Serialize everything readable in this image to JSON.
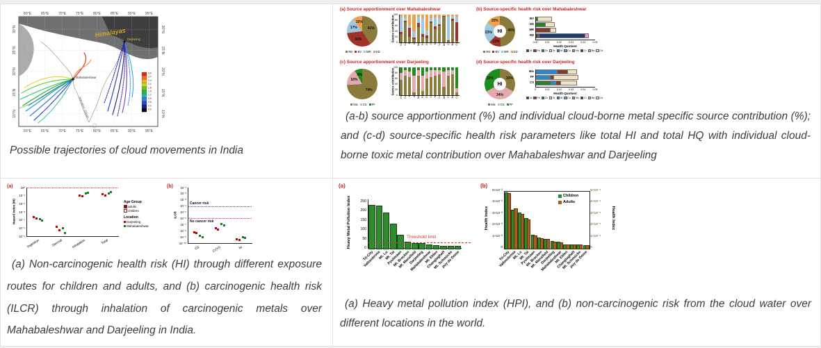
{
  "captions": {
    "map": "Possible trajectories of cloud movements in India",
    "top_right": "(a-b) source apportionment (%) and individual cloud-borne metal specific source contribution (%); and (c-d) source-specific health risk parameters like total HI and total HQ with individual cloud-borne toxic metal contribution over Mahabaleshwar and Darjeeling",
    "bottom_left": "(a) Non-carcinogenic health risk (HI) through different exposure routes for children and adults, and (b) carcinogenic health risk (ILCR) through inhalation of carcinogenic metals over Mahabaleshwar and Darjeeling in India.",
    "bottom_right": "(a) Heavy metal pollution index (HPI), and (b) non-carcinogenic risk from the cloud water over different locations in the world."
  },
  "metal_colors": {
    "Al": "#3b3b3b",
    "Fe": "#843c28",
    "Zn": "#2f7d32",
    "Sr": "#f2e2c0",
    "Ni": "#2e86c8",
    "Cu": "#6aa4d8",
    "Mn": "#d98032",
    "Cr": "#1c3a6e",
    "Ba": "#e89cc0",
    "Cd": "#ececec"
  },
  "chart_data": [
    {
      "id": "trajectory-map",
      "type": "map",
      "lon_ticks": [
        "60°E",
        "65°E",
        "70°E",
        "75°E",
        "80°E",
        "85°E",
        "90°E",
        "95°E"
      ],
      "lat_ticks": [
        "30°N",
        "25°N",
        "20°N",
        "15°N",
        "10°N"
      ],
      "labels": {
        "himalayas": "Himalayas",
        "darjeeling": "Darjeeling",
        "mahabaleshwar": "Mahabaleshwar",
        "western_ghats": "Western Ghats"
      },
      "colorbar_ticks": [
        "3.0",
        "2.7",
        "2.4",
        "2.1",
        "1.8",
        "1.5",
        "1.2",
        "0.9",
        "0.6",
        "0.3",
        "0.0"
      ],
      "colorbar_colors": [
        "#d92b1f",
        "#f2701d",
        "#f2b01d",
        "#c8d41f",
        "#6cc41f",
        "#2bb33e",
        "#24b7a0",
        "#2a86d4",
        "#2a46c9",
        "#1d1b8c",
        "#0a0a0a"
      ]
    },
    {
      "id": "pie-source-mahabaleshwar",
      "type": "pie",
      "title": "(a)  Source apportionment over Mahabaleshwar",
      "labels": [
        "RD",
        "BV",
        "MR",
        "DD"
      ],
      "values": [
        41,
        32,
        17,
        10
      ],
      "colors": [
        "#8a7a3b",
        "#a03028",
        "#9ec7e0",
        "#f0a04b"
      ]
    },
    {
      "id": "bars-source-mahabaleshwar",
      "type": "stacked-bar",
      "ylabel": "Source contribution",
      "ylim": [
        0,
        100
      ],
      "yticks": [
        0,
        20,
        40,
        60,
        80,
        100
      ],
      "categories": [
        "Na",
        "Ca",
        "K",
        "Al",
        "Mg",
        "Fe",
        "Zn",
        "Sr",
        "Ni",
        "Cu",
        "Mn",
        "Cr",
        "Ba",
        "Cd"
      ],
      "series": [
        {
          "name": "RD",
          "color": "#8a7a3b",
          "values": [
            30,
            72,
            20,
            12,
            55,
            20,
            15,
            70,
            48,
            60,
            92,
            5,
            78,
            5
          ]
        },
        {
          "name": "BV",
          "color": "#a03028",
          "values": [
            8,
            6,
            32,
            6,
            14,
            10,
            10,
            6,
            10,
            6,
            2,
            2,
            6,
            68
          ]
        },
        {
          "name": "MR",
          "color": "#9ec7e0",
          "values": [
            55,
            12,
            8,
            22,
            24,
            58,
            18,
            12,
            32,
            22,
            4,
            85,
            10,
            20
          ]
        },
        {
          "name": "DD",
          "color": "#f0a04b",
          "values": [
            7,
            10,
            40,
            60,
            7,
            12,
            57,
            12,
            10,
            12,
            2,
            8,
            6,
            7
          ]
        }
      ]
    },
    {
      "id": "donut-health-mahabaleshwar",
      "type": "donut",
      "title": "(b)  Source-specific health risk over Mahabaleshwar",
      "center_label": "HI",
      "labels": [
        "RD",
        "BV",
        "MR",
        "DD"
      ],
      "values": [
        49,
        13,
        23,
        15
      ],
      "colors": [
        "#8a7a3b",
        "#a03028",
        "#9ec7e0",
        "#f0a04b"
      ]
    },
    {
      "id": "hq-bars-mahabaleshwar",
      "type": "h-stacked-bar",
      "xlabel": "Health Quotient",
      "xlim": [
        0,
        0.05
      ],
      "xticks": [
        "0.00",
        "0.01",
        "0.02",
        "0.03",
        "0.04",
        "0.05"
      ],
      "rows": [
        {
          "label": "BV",
          "segments": [
            [
              "Zn",
              0.0015
            ],
            [
              "Sr",
              0.0115
            ]
          ]
        },
        {
          "label": "DD",
          "segments": [
            [
              "Zn",
              0.008
            ],
            [
              "Sr",
              0.007
            ]
          ]
        },
        {
          "label": "MR",
          "segments": [
            [
              "Fe",
              0.012
            ],
            [
              "Sr",
              0.0045
            ]
          ]
        },
        {
          "label": "RD",
          "segments": [
            [
              "Al",
              0.0015
            ],
            [
              "Fe",
              0.0015
            ],
            [
              "Cr",
              0.038
            ],
            [
              "Ba",
              0.0025
            ]
          ]
        }
      ],
      "metal_legend": [
        "Al",
        "Fe",
        "Zn",
        "Sr",
        "Ni",
        "Cu",
        "Mn",
        "Cr",
        "Ba",
        "Cd"
      ]
    },
    {
      "id": "pie-source-darjeeling",
      "type": "pie",
      "title": "(c)  Source apportionment over Darjeeling",
      "labels": [
        "Mix",
        "CS",
        "FF"
      ],
      "values": [
        74,
        18,
        8
      ],
      "colors": [
        "#8a7a3b",
        "#e5a9ad",
        "#1e8c1e"
      ]
    },
    {
      "id": "bars-source-darjeeling",
      "type": "stacked-bar",
      "ylabel": "Source contribution",
      "ylim": [
        0,
        100
      ],
      "yticks": [
        0,
        20,
        40,
        60,
        80,
        100
      ],
      "categories": [
        "Na",
        "Ca",
        "K",
        "Al",
        "Mg",
        "Fe",
        "Zn",
        "Sr",
        "Ni",
        "Cu",
        "Mn",
        "Cr",
        "Ba",
        "Cd"
      ],
      "series": [
        {
          "name": "Mix",
          "color": "#8a7a3b",
          "values": [
            55,
            70,
            65,
            10,
            70,
            15,
            60,
            65,
            70,
            75,
            30,
            70,
            75,
            10
          ]
        },
        {
          "name": "CS",
          "color": "#e5a9ad",
          "values": [
            25,
            20,
            20,
            60,
            20,
            55,
            25,
            25,
            20,
            15,
            55,
            20,
            15,
            15
          ]
        },
        {
          "name": "FF",
          "color": "#1e8c1e",
          "values": [
            20,
            10,
            15,
            30,
            10,
            30,
            15,
            10,
            10,
            10,
            15,
            10,
            10,
            75
          ]
        }
      ]
    },
    {
      "id": "donut-health-darjeeling",
      "type": "donut",
      "title": "(d)  Source-specific health risk over Darjeeling",
      "center_label": "HI",
      "labels": [
        "Mix",
        "CS",
        "FF"
      ],
      "values": [
        33,
        34,
        32
      ],
      "colors": [
        "#8a7a3b",
        "#e5a9ad",
        "#1e8c1e"
      ]
    },
    {
      "id": "hq-bars-darjeeling",
      "type": "h-stacked-bar",
      "xlabel": "Health Quotient",
      "xlim": [
        0,
        0.05
      ],
      "xticks": [
        "0",
        "0.01",
        "0.02",
        "0.03",
        "0.04",
        "0.05"
      ],
      "rows": [
        {
          "label": "Mix",
          "segments": [
            [
              "Ni",
              0.018
            ],
            [
              "Fe",
              0.009
            ],
            [
              "Sr",
              0.007
            ]
          ]
        },
        {
          "label": "FF",
          "segments": [
            [
              "Ni",
              0.012
            ],
            [
              "Fe",
              0.003
            ],
            [
              "Sr",
              0.02
            ]
          ]
        },
        {
          "label": "CS",
          "segments": [
            [
              "Zn",
              0.013
            ],
            [
              "Ni",
              0.004
            ],
            [
              "Fe",
              0.004
            ],
            [
              "Sr",
              0.013
            ]
          ]
        }
      ],
      "metal_legend": [
        "Al",
        "Fe",
        "Zn",
        "Sr",
        "Ni",
        "Cu",
        "Mn",
        "Cr",
        "Ba",
        "Cd"
      ]
    },
    {
      "id": "hazard-index-scatter",
      "type": "scatter",
      "panel_label": "(a)",
      "ylabel": "Hazard Index (HI)",
      "yticks": [
        "10⁰",
        "10⁻¹",
        "10⁻²",
        "10⁻³",
        "10⁻⁴",
        "10⁻⁵",
        "10⁻⁶"
      ],
      "ylog_range": [
        0,
        -6
      ],
      "categories": [
        "Ingestion",
        "Dermal",
        "Inhalation",
        "Total"
      ],
      "ref_lines": [
        {
          "log": 0,
          "color": "#e03030"
        }
      ],
      "series": [
        {
          "name": "Darjeeling",
          "color": "#c00000",
          "points": [
            [
              -3.6,
              -3.8
            ],
            [
              -4.8,
              -5.3
            ],
            [
              -0.95,
              -1.1
            ],
            [
              -0.85,
              -1.0
            ]
          ]
        },
        {
          "name": "Mahabaleshwar",
          "color": "#1e7a1e",
          "points": [
            [
              -3.9,
              -4.1
            ],
            [
              -5.0,
              -5.6
            ],
            [
              -0.75,
              -0.6
            ],
            [
              -0.7,
              -0.55
            ]
          ]
        }
      ],
      "legend": {
        "age_group_title": "Age Group",
        "age_items": [
          "adults",
          "children"
        ],
        "location_title": "Location",
        "location_items": [
          "Darjeeling",
          "Mahabaleshwar"
        ],
        "location_colors": [
          "#c00000",
          "#1e7a1e"
        ]
      }
    },
    {
      "id": "ilcr-scatter",
      "type": "scatter",
      "panel_label": "(b)",
      "ylabel": "ILCR",
      "yticks": [
        "10⁻¹",
        "10⁻²",
        "10⁻³",
        "10⁻⁴",
        "10⁻⁵",
        "10⁻⁶",
        "10⁻⁷",
        "10⁻⁸",
        "10⁻⁹",
        "10⁻¹⁰"
      ],
      "ylog_range": [
        -1,
        -10
      ],
      "categories": [
        "Cd",
        "Cr(VI)",
        "Ni"
      ],
      "ref_lines": [
        {
          "log": -4,
          "color": "#4444e0",
          "label": "Cancer risk",
          "label_pos": "above"
        },
        {
          "log": -6,
          "color": "#e03030",
          "label": "No cancer risk",
          "label_pos": "below"
        }
      ],
      "series": [
        {
          "name": "Darjeeling",
          "color": "#c00000",
          "points": [
            [
              -8.2,
              -8.4
            ],
            [
              -7.6,
              -7.8
            ],
            [
              -9.4,
              -9.5
            ]
          ]
        },
        {
          "name": "Mahabaleshwar",
          "color": "#1e7a1e",
          "points": [
            [
              -8.8,
              -9.0
            ],
            [
              -6.9,
              -7.1
            ],
            [
              -9.0,
              -9.2
            ]
          ]
        }
      ]
    },
    {
      "id": "hpi-bars",
      "type": "bar",
      "panel_label": "(a)",
      "ylabel": "Heavy Metal Pollution Index",
      "yticks": [
        0,
        50,
        100,
        150,
        200,
        250
      ],
      "ylim": [
        0,
        260
      ],
      "categories": [
        "Tri-City",
        "Vallombrosa",
        "Mt. Lu",
        "Mt. Tai",
        "Pyulimaan",
        "Mt. Brocken",
        "Mt. Mansfield",
        "Darjeeling",
        "Mahabaleshwar",
        "Mt. Elden",
        "Changlaghatt",
        "Mt. Schmücke",
        "puy de Dome"
      ],
      "values": [
        232,
        228,
        188,
        130,
        70,
        35,
        27,
        25,
        17,
        14,
        13,
        12,
        10
      ],
      "bar_color": "#2e8b2e",
      "threshold": {
        "value": 30,
        "label": "Threshold limit",
        "color": "#e03030"
      }
    },
    {
      "id": "health-index-bars",
      "type": "dual-bar",
      "panel_label": "(b)",
      "ylabel_left": "Health Index",
      "ylabel_right": "Health Index",
      "yticks_left": [
        "5×10⁻²",
        "4×10⁻²",
        "3×10⁻²",
        "2×10⁻²",
        "1×10⁻²",
        "0"
      ],
      "yticks_right": [
        "5×10⁻⁴",
        "4×10⁻⁴",
        "3×10⁻⁴",
        "2×10⁻⁴",
        "1×10⁻⁴",
        "0"
      ],
      "categories": [
        "Tri-City",
        "Vallombrosa",
        "Mt. Lu",
        "Mt. Tai",
        "Pyulimaan",
        "Mt. Brocken",
        "Mt. Mansfield",
        "Darjeeling",
        "Mahabaleshwar",
        "Mt. Elden",
        "Changlaghatt",
        "Mt. Schmücke",
        "puy de Dome"
      ],
      "series": [
        {
          "name": "Children",
          "color": "#2e8b2e",
          "scale_max": 0.05,
          "values": [
            0.049,
            0.0335,
            0.031,
            0.026,
            0.0115,
            0.009,
            0.008,
            0.006,
            0.0055,
            0.003,
            0.003,
            0.003,
            0.0025
          ]
        },
        {
          "name": "Adults",
          "color": "#a65e1e",
          "scale_max": 0.0005,
          "values": [
            0.00048,
            0.00035,
            0.0003,
            0.00025,
            0.00011,
            8.5e-05,
            8e-05,
            5.5e-05,
            5e-05,
            3e-05,
            3e-05,
            3e-05,
            2.5e-05
          ]
        }
      ]
    }
  ]
}
